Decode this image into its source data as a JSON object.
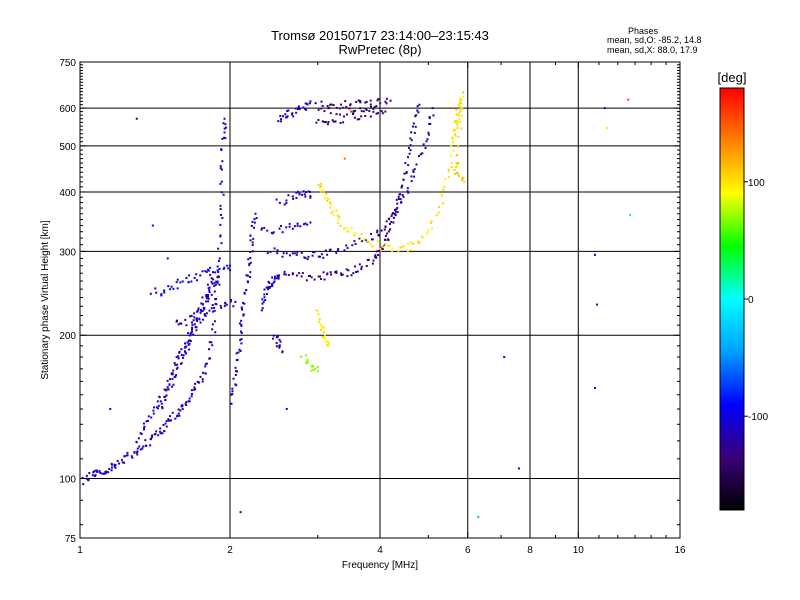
{
  "header": {
    "title": "Tromsø 20150717 23:14:00–23:15:43",
    "subtitle": "RwPretec (8p)"
  },
  "stats": {
    "heading": "Phases",
    "line_o": "mean, sd,O: -85.2, 14.8",
    "line_x": "mean, sd,X: 88.0, 17.9"
  },
  "colorbar": {
    "unit_label": "[deg]",
    "ticks": [
      {
        "value": 100,
        "label": "100"
      },
      {
        "value": 0,
        "label": "0"
      },
      {
        "value": -100,
        "label": "-100"
      }
    ],
    "range": [
      -180,
      180
    ],
    "stops": [
      "#000000",
      "#3a0078",
      "#0000ff",
      "#00a0ff",
      "#00ffff",
      "#00ff00",
      "#ffff00",
      "#ff8000",
      "#ff0000"
    ]
  },
  "chart_data": {
    "type": "scatter",
    "title": "Tromsø 20150717 23:14:00–23:15:43",
    "subtitle": "RwPretec (8p)",
    "xlabel": "Frequency [MHz]",
    "ylabel": "Stationary phase Virtual Height [km]",
    "xscale": "log",
    "yscale": "log",
    "xlim": [
      1,
      16
    ],
    "ylim": [
      75,
      750
    ],
    "xticks": [
      {
        "value": 1,
        "label": "1"
      },
      {
        "value": 2,
        "label": "2"
      },
      {
        "value": 4,
        "label": "4"
      },
      {
        "value": 6,
        "label": "6"
      },
      {
        "value": 8,
        "label": "8"
      },
      {
        "value": 10,
        "label": "10"
      },
      {
        "value": 16,
        "label": "16"
      }
    ],
    "yticks": [
      {
        "value": 75,
        "label": "75"
      },
      {
        "value": 100,
        "label": "100"
      },
      {
        "value": 200,
        "label": "200"
      },
      {
        "value": 300,
        "label": "300"
      },
      {
        "value": 400,
        "label": "400"
      },
      {
        "value": 500,
        "label": "500"
      },
      {
        "value": 600,
        "label": "600"
      },
      {
        "value": 750,
        "label": "750"
      }
    ],
    "gridlines_x": [
      2,
      4,
      6,
      8,
      10
    ],
    "gridlines_y": [
      100,
      200,
      300,
      400,
      500,
      600
    ],
    "color_variable": "phase [deg]",
    "traces": [
      {
        "points": [
          [
            1.02,
            99
          ],
          [
            1.05,
            101
          ],
          [
            1.08,
            103
          ],
          [
            1.12,
            104
          ],
          [
            1.16,
            106
          ],
          [
            1.2,
            108
          ],
          [
            1.25,
            111
          ],
          [
            1.3,
            114
          ],
          [
            1.35,
            118
          ],
          [
            1.4,
            122
          ],
          [
            1.45,
            126
          ],
          [
            1.5,
            131
          ],
          [
            1.55,
            135
          ],
          [
            1.6,
            140
          ],
          [
            1.65,
            146
          ],
          [
            1.7,
            153
          ],
          [
            1.75,
            162
          ],
          [
            1.8,
            175
          ],
          [
            1.85,
            200
          ],
          [
            1.88,
            240
          ],
          [
            1.9,
            290
          ],
          [
            1.92,
            360
          ],
          [
            1.93,
            440
          ],
          [
            1.94,
            520
          ],
          [
            1.95,
            570
          ]
        ],
        "phase": -110
      },
      {
        "points": [
          [
            1.3,
            120
          ],
          [
            1.35,
            128
          ],
          [
            1.4,
            138
          ],
          [
            1.45,
            148
          ],
          [
            1.5,
            160
          ],
          [
            1.55,
            172
          ],
          [
            1.6,
            185
          ],
          [
            1.65,
            198
          ],
          [
            1.7,
            212
          ],
          [
            1.75,
            228
          ],
          [
            1.8,
            245
          ],
          [
            1.85,
            262
          ]
        ],
        "phase": -105
      },
      {
        "points": [
          [
            1.45,
            140
          ],
          [
            1.5,
            152
          ],
          [
            1.55,
            165
          ],
          [
            1.6,
            178
          ],
          [
            1.65,
            192
          ],
          [
            1.7,
            206
          ],
          [
            1.75,
            220
          ],
          [
            1.8,
            236
          ],
          [
            1.85,
            250
          ],
          [
            1.9,
            265
          ]
        ],
        "phase": -115
      },
      {
        "points": [
          [
            1.4,
            245
          ],
          [
            1.5,
            250
          ],
          [
            1.6,
            258
          ],
          [
            1.7,
            265
          ],
          [
            1.8,
            270
          ],
          [
            1.9,
            275
          ],
          [
            2.0,
            280
          ]
        ],
        "phase": -100
      },
      {
        "points": [
          [
            1.55,
            210
          ],
          [
            1.65,
            215
          ],
          [
            1.75,
            222
          ],
          [
            1.85,
            228
          ],
          [
            1.95,
            232
          ],
          [
            2.05,
            235
          ]
        ],
        "phase": -108
      },
      {
        "points": [
          [
            2.0,
            145
          ],
          [
            2.05,
            160
          ],
          [
            2.08,
            180
          ],
          [
            2.1,
            200
          ],
          [
            2.12,
            220
          ],
          [
            2.15,
            245
          ],
          [
            2.18,
            270
          ],
          [
            2.2,
            300
          ],
          [
            2.22,
            330
          ],
          [
            2.25,
            360
          ]
        ],
        "phase": -112
      },
      {
        "points": [
          [
            2.3,
            230
          ],
          [
            2.35,
            245
          ],
          [
            2.4,
            255
          ],
          [
            2.45,
            260
          ],
          [
            2.5,
            265
          ]
        ],
        "phase": -105
      },
      {
        "points": [
          [
            2.5,
            268
          ],
          [
            2.7,
            266
          ],
          [
            2.9,
            265
          ],
          [
            3.1,
            266
          ],
          [
            3.3,
            268
          ],
          [
            3.5,
            272
          ],
          [
            3.7,
            280
          ],
          [
            3.9,
            292
          ],
          [
            4.0,
            300
          ],
          [
            4.1,
            315
          ],
          [
            4.2,
            340
          ],
          [
            4.3,
            370
          ],
          [
            4.4,
            400
          ],
          [
            4.5,
            440
          ],
          [
            4.6,
            490
          ],
          [
            4.7,
            550
          ],
          [
            4.8,
            610
          ]
        ],
        "phase": -128
      },
      {
        "points": [
          [
            2.4,
            300
          ],
          [
            2.6,
            295
          ],
          [
            2.8,
            292
          ],
          [
            3.0,
            294
          ],
          [
            3.2,
            300
          ],
          [
            3.5,
            310
          ],
          [
            3.8,
            320
          ],
          [
            4.0,
            330
          ],
          [
            4.2,
            350
          ],
          [
            4.4,
            380
          ],
          [
            4.6,
            420
          ],
          [
            4.8,
            470
          ],
          [
            5.0,
            530
          ],
          [
            5.1,
            600
          ]
        ],
        "phase": -118
      },
      {
        "points": [
          [
            2.3,
            330
          ],
          [
            2.5,
            335
          ],
          [
            2.7,
            340
          ],
          [
            2.9,
            345
          ]
        ],
        "phase": -105
      },
      {
        "points": [
          [
            2.5,
            380
          ],
          [
            2.7,
            390
          ],
          [
            2.8,
            400
          ],
          [
            2.9,
            392
          ]
        ],
        "phase": -110
      },
      {
        "points": [
          [
            3.0,
            420
          ],
          [
            3.1,
            395
          ],
          [
            3.2,
            370
          ],
          [
            3.3,
            350
          ],
          [
            3.5,
            330
          ],
          [
            3.8,
            315
          ],
          [
            4.1,
            305
          ],
          [
            4.4,
            302
          ],
          [
            4.7,
            310
          ],
          [
            5.0,
            330
          ],
          [
            5.3,
            380
          ],
          [
            5.5,
            440
          ],
          [
            5.6,
            500
          ],
          [
            5.7,
            560
          ],
          [
            5.75,
            610
          ]
        ],
        "phase": 100
      },
      {
        "points": [
          [
            5.6,
            520
          ],
          [
            5.7,
            560
          ],
          [
            5.8,
            600
          ],
          [
            5.85,
            640
          ],
          [
            5.75,
            480
          ],
          [
            5.65,
            440
          ],
          [
            5.9,
            420
          ]
        ],
        "phase": 105
      },
      {
        "points": [
          [
            2.5,
            570
          ],
          [
            2.6,
            580
          ],
          [
            2.7,
            590
          ],
          [
            2.8,
            600
          ],
          [
            2.9,
            620
          ]
        ],
        "phase": -108
      },
      {
        "points": [
          [
            3.0,
            610
          ],
          [
            3.3,
            608
          ],
          [
            3.6,
            612
          ],
          [
            3.9,
            618
          ],
          [
            4.2,
            622
          ]
        ],
        "phase": -140
      },
      {
        "points": [
          [
            3.0,
            555
          ],
          [
            3.2,
            560
          ],
          [
            3.5,
            575
          ],
          [
            3.8,
            585
          ],
          [
            4.1,
            590
          ]
        ],
        "phase": -138
      },
      {
        "points": [
          [
            3.0,
            590
          ],
          [
            3.3,
            592
          ],
          [
            3.6,
            597
          ],
          [
            3.9,
            603
          ]
        ],
        "phase": -142
      },
      {
        "points": [
          [
            3.0,
            225
          ],
          [
            3.05,
            210
          ],
          [
            3.1,
            200
          ],
          [
            3.15,
            190
          ]
        ],
        "phase": 100
      },
      {
        "points": [
          [
            2.8,
            180
          ],
          [
            2.9,
            172
          ],
          [
            3.0,
            168
          ]
        ],
        "phase": 70
      },
      {
        "points": [
          [
            2.45,
            200
          ],
          [
            2.5,
            192
          ],
          [
            2.55,
            185
          ]
        ],
        "phase": -115
      }
    ],
    "scatter": [
      {
        "x": 1.4,
        "y": 340,
        "phase": -100
      },
      {
        "x": 1.5,
        "y": 290,
        "phase": -105
      },
      {
        "x": 1.3,
        "y": 570,
        "phase": -130
      },
      {
        "x": 1.15,
        "y": 140,
        "phase": -105
      },
      {
        "x": 2.1,
        "y": 85,
        "phase": -150
      },
      {
        "x": 6.3,
        "y": 83,
        "phase": -30
      },
      {
        "x": 7.1,
        "y": 180,
        "phase": -110
      },
      {
        "x": 7.6,
        "y": 105,
        "phase": -90
      },
      {
        "x": 10.8,
        "y": 295,
        "phase": -110
      },
      {
        "x": 10.9,
        "y": 232,
        "phase": -115
      },
      {
        "x": 11.3,
        "y": 600,
        "phase": -120
      },
      {
        "x": 11.4,
        "y": 545,
        "phase": 80
      },
      {
        "x": 12.6,
        "y": 625,
        "phase": 160
      },
      {
        "x": 12.7,
        "y": 358,
        "phase": 25
      },
      {
        "x": 10.8,
        "y": 155,
        "phase": -110
      },
      {
        "x": 2.6,
        "y": 140,
        "phase": -100
      },
      {
        "x": 3.4,
        "y": 470,
        "phase": 140
      },
      {
        "x": 3.5,
        "y": 590,
        "phase": 170
      }
    ]
  }
}
